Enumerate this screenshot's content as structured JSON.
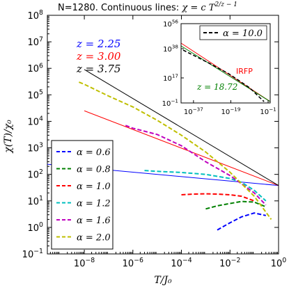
{
  "chart_data": [
    {
      "type": "line",
      "title": "N=1280. Continuous lines: χ = c T^(2/z−1)",
      "title_prefix": "N=1280. Continuous lines: ",
      "title_formula": "χ = c T",
      "title_exponent": "2/z − 1",
      "xlabel": "T/J₀",
      "ylabel": "χ(T)/χ₀",
      "xscale": "log",
      "yscale": "log",
      "xlim": [
        3e-10,
        1
      ],
      "ylim": [
        0.1,
        100000000.0
      ],
      "x_ticks": [
        1e-08,
        1e-06,
        0.0001,
        0.01,
        1
      ],
      "x_tick_labels": [
        "10^-8",
        "10^-6",
        "10^-4",
        "10^-2",
        "10^0"
      ],
      "y_ticks": [
        0.1,
        1,
        10,
        100,
        1000,
        10000,
        100000,
        1000000,
        10000000,
        100000000
      ],
      "y_tick_labels": [
        "10^-1",
        "10^0",
        "10^1",
        "10^2",
        "10^3",
        "10^4",
        "10^5",
        "10^6",
        "10^7",
        "10^8"
      ],
      "power_laws": [
        {
          "label": "z = 2.25",
          "color": "#0000ff",
          "x": [
            3e-10,
            1
          ],
          "y": [
            240,
            38
          ]
        },
        {
          "label": "z = 3.00",
          "color": "#ff0000",
          "x": [
            1e-08,
            1
          ],
          "y": [
            25000,
            38
          ]
        },
        {
          "label": "z = 3.75",
          "color": "#000000",
          "x": [
            1e-08,
            1
          ],
          "y": [
            900000,
            38
          ]
        }
      ],
      "series": [
        {
          "name": "α = 0.6",
          "color": "#0000ff",
          "x": [
            0.003,
            0.01,
            0.03,
            0.1,
            0.3
          ],
          "y": [
            0.8,
            1.5,
            2.5,
            3.5,
            2.8
          ]
        },
        {
          "name": "α = 0.8",
          "color": "#008000",
          "x": [
            0.001,
            0.003,
            0.01,
            0.03,
            0.1,
            0.3
          ],
          "y": [
            5,
            6.5,
            8,
            9.5,
            9,
            6
          ]
        },
        {
          "name": "α = 1.0",
          "color": "#ff0000",
          "x": [
            0.0001,
            0.0003,
            0.001,
            0.003,
            0.01,
            0.03,
            0.1
          ],
          "y": [
            17,
            18,
            18.5,
            18,
            17,
            15,
            10
          ]
        },
        {
          "name": "α = 1.2",
          "color": "#00bfbf",
          "x": [
            3e-06,
            1e-05,
            0.0001,
            0.001,
            0.01,
            0.03,
            0.1,
            0.3
          ],
          "y": [
            140,
            130,
            118,
            100,
            70,
            50,
            25,
            10
          ]
        },
        {
          "name": "α = 1.6",
          "color": "#bf00bf",
          "x": [
            5e-07,
            1e-06,
            1e-05,
            0.0001,
            0.001,
            0.01,
            0.1,
            0.3
          ],
          "y": [
            7000,
            5500,
            3200,
            1200,
            300,
            90,
            20,
            7
          ]
        },
        {
          "name": "α = 2.0",
          "color": "#bfbf00",
          "x": [
            6e-09,
            1e-08,
            1e-07,
            1e-06,
            1e-05,
            0.0001,
            0.001,
            0.01,
            0.1,
            0.5
          ],
          "y": [
            300000,
            250000,
            90000,
            35000,
            11000,
            3000,
            700,
            120,
            15,
            2
          ]
        }
      ],
      "annotations": [
        "z = 2.25",
        "z = 3.00",
        "z = 3.75"
      ],
      "legend_position": "bottom-left"
    },
    {
      "type": "line",
      "xscale": "log",
      "yscale": "log",
      "xlim": [
        1e-43,
        1
      ],
      "ylim": [
        0.1,
        1e+56
      ],
      "x_tick_labels": [
        "10^-37",
        "10^-19",
        "10^-1"
      ],
      "y_tick_labels": [
        "10^-1",
        "10^17",
        "10^38",
        "10^56"
      ],
      "series": [
        {
          "name": "α = 10.0",
          "color": "#000000",
          "x": [
            1e-42,
            1e-30,
            1e-20,
            1e-10,
            0.001
          ],
          "y": [
            1e+37,
            1e+28,
            1e+20,
            10000000000.0,
            1
          ]
        }
      ],
      "power_laws": [
        {
          "label": "IRFP",
          "color": "#ff0000",
          "x": [
            1e-43,
            1
          ],
          "y": [
            1e+42,
            1
          ]
        },
        {
          "label": "z = 18.72",
          "color": "#008000",
          "x": [
            1e-43,
            1
          ],
          "y": [
            1e+40,
            1
          ]
        }
      ],
      "annotations": [
        "IRFP",
        "z = 18.72"
      ],
      "legend_position": "top-right"
    }
  ]
}
